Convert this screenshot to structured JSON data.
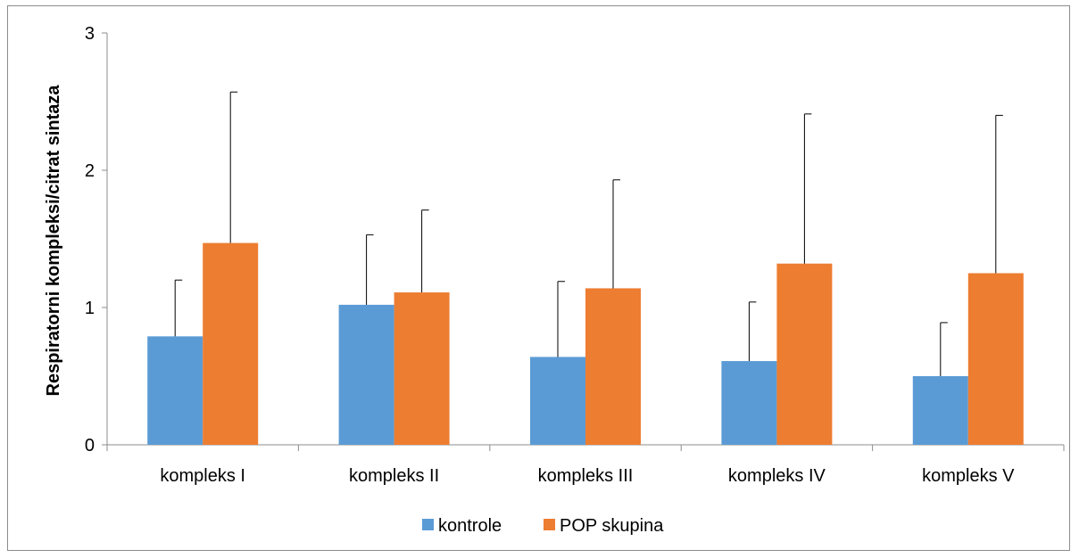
{
  "chart_data": {
    "type": "bar",
    "title": "",
    "xlabel": "",
    "ylabel": "Respiratorni kompleksi/citrat sintaza",
    "categories": [
      "kompleks I",
      "kompleks II",
      "kompleks III",
      "kompleks IV",
      "kompleks V"
    ],
    "ylim": [
      0,
      3
    ],
    "yticks": [
      0,
      1,
      2,
      3
    ],
    "grid": false,
    "legend_position": "bottom",
    "error_bars": "upper",
    "series": [
      {
        "name": "kontrole",
        "color": "#5b9bd5",
        "values": [
          0.79,
          1.02,
          0.64,
          0.61,
          0.5
        ],
        "errors": [
          0.41,
          0.51,
          0.55,
          0.43,
          0.39
        ]
      },
      {
        "name": "POP skupina",
        "color": "#ed7d31",
        "values": [
          1.47,
          1.11,
          1.14,
          1.32,
          1.25
        ],
        "errors": [
          1.1,
          0.6,
          0.79,
          1.09,
          1.15
        ]
      }
    ]
  }
}
